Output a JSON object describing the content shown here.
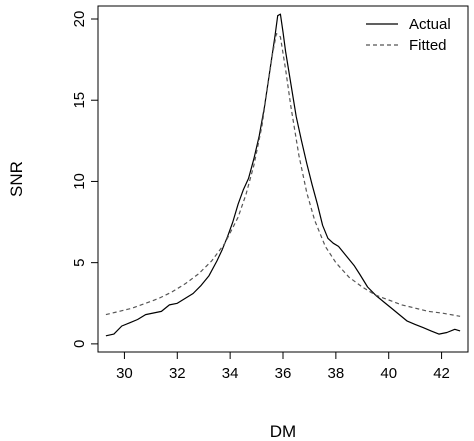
{
  "chart_data": {
    "type": "line",
    "xlabel": "DM",
    "ylabel": "SNR",
    "xlim": [
      29,
      43
    ],
    "ylim": [
      -0.5,
      20.8
    ],
    "xticks": [
      30,
      32,
      34,
      36,
      38,
      40,
      42
    ],
    "yticks": [
      0,
      5,
      10,
      15,
      20
    ],
    "grid": false,
    "legend": {
      "placement": "top-right"
    },
    "series": [
      {
        "name": "Actual",
        "style": "solid",
        "color": "#000000",
        "x": [
          29.3,
          29.6,
          29.9,
          30.2,
          30.5,
          30.8,
          31.1,
          31.4,
          31.7,
          32.0,
          32.3,
          32.6,
          32.9,
          33.2,
          33.5,
          33.7,
          33.9,
          34.1,
          34.3,
          34.5,
          34.7,
          34.9,
          35.1,
          35.3,
          35.5,
          35.7,
          35.8,
          35.9,
          36.0,
          36.1,
          36.3,
          36.5,
          36.7,
          36.9,
          37.1,
          37.3,
          37.5,
          37.7,
          37.9,
          38.1,
          38.3,
          38.5,
          38.7,
          38.9,
          39.2,
          39.5,
          39.8,
          40.1,
          40.4,
          40.7,
          41.0,
          41.3,
          41.6,
          41.9,
          42.2,
          42.5,
          42.7
        ],
        "y": [
          0.5,
          0.6,
          1.1,
          1.3,
          1.5,
          1.8,
          1.9,
          2.0,
          2.4,
          2.5,
          2.8,
          3.1,
          3.6,
          4.2,
          5.1,
          5.8,
          6.6,
          7.5,
          8.6,
          9.5,
          10.2,
          11.4,
          12.8,
          14.6,
          16.8,
          19.0,
          20.2,
          20.3,
          19.2,
          18.0,
          16.0,
          14.0,
          12.5,
          11.1,
          9.8,
          8.6,
          7.3,
          6.5,
          6.2,
          6.0,
          5.6,
          5.2,
          4.8,
          4.3,
          3.5,
          3.0,
          2.6,
          2.2,
          1.8,
          1.4,
          1.2,
          1.0,
          0.8,
          0.6,
          0.7,
          0.9,
          0.8
        ]
      },
      {
        "name": "Fitted",
        "style": "dashed",
        "color": "#555555",
        "x": [
          29.3,
          29.8,
          30.3,
          30.8,
          31.3,
          31.8,
          32.3,
          32.8,
          33.3,
          33.8,
          34.3,
          34.6,
          34.9,
          35.2,
          35.4,
          35.6,
          35.75,
          35.9,
          36.1,
          36.3,
          36.6,
          36.9,
          37.2,
          37.6,
          38.0,
          38.5,
          39.0,
          39.5,
          40.0,
          40.5,
          41.0,
          41.5,
          42.0,
          42.7
        ],
        "y": [
          1.8,
          2.0,
          2.2,
          2.5,
          2.8,
          3.2,
          3.7,
          4.3,
          5.1,
          6.2,
          7.8,
          9.2,
          11.0,
          13.4,
          15.6,
          17.8,
          19.1,
          18.9,
          16.9,
          14.6,
          11.6,
          9.3,
          7.6,
          6.0,
          5.0,
          4.1,
          3.5,
          3.0,
          2.7,
          2.4,
          2.2,
          2.0,
          1.9,
          1.7
        ]
      }
    ]
  }
}
